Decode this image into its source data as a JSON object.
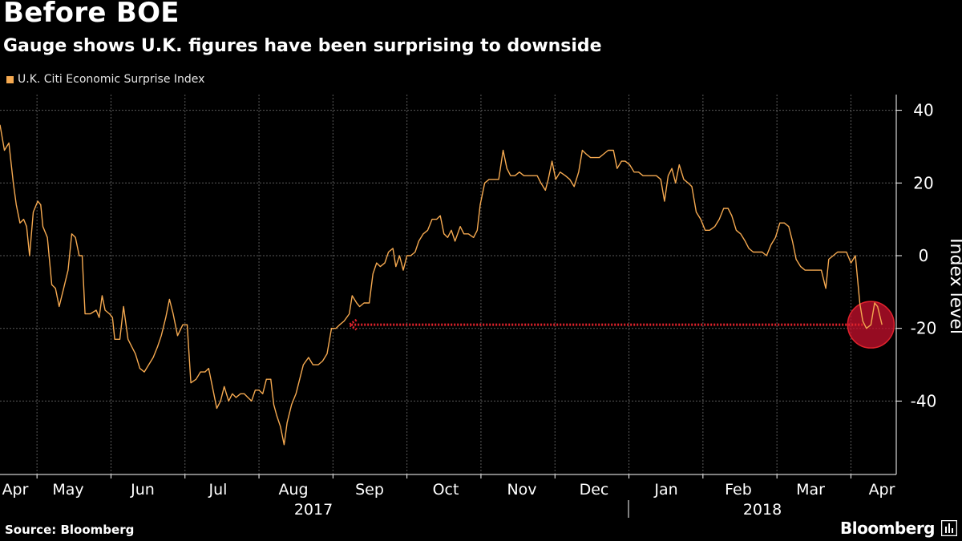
{
  "title": "Before BOE",
  "subtitle": "Gauge shows U.K. figures have been surprising to downside",
  "source": "Source: Bloomberg",
  "brand": "Bloomberg",
  "chart_data": {
    "type": "line",
    "legend": [
      "U.K. Citi Economic Surprise Index"
    ],
    "legend_position": "top-left",
    "color": "#f5a950",
    "ylabel": "Index level",
    "ylim": [
      -60,
      45
    ],
    "yticks": [
      40,
      20,
      0,
      -20,
      -40
    ],
    "y_axis_side": "right",
    "grid": true,
    "months": [
      "Apr",
      "May",
      "Jun",
      "Jul",
      "Aug",
      "Sep",
      "Oct",
      "Nov",
      "Dec",
      "Jan",
      "Feb",
      "Mar",
      "Apr"
    ],
    "years": [
      "2017",
      "2018"
    ],
    "x_unit": "months since Apr 1, 2017",
    "series": [
      {
        "name": "U.K. Citi Economic Surprise Index",
        "points": [
          [
            0.0,
            36
          ],
          [
            0.06,
            29
          ],
          [
            0.12,
            31
          ],
          [
            0.18,
            20
          ],
          [
            0.22,
            14
          ],
          [
            0.27,
            9
          ],
          [
            0.32,
            10
          ],
          [
            0.36,
            8
          ],
          [
            0.4,
            0
          ],
          [
            0.45,
            12
          ],
          [
            0.51,
            15
          ],
          [
            0.55,
            14
          ],
          [
            0.58,
            8
          ],
          [
            0.64,
            5
          ],
          [
            0.7,
            -8
          ],
          [
            0.75,
            -9
          ],
          [
            0.8,
            -14
          ],
          [
            0.86,
            -9
          ],
          [
            0.92,
            -4
          ],
          [
            0.97,
            6
          ],
          [
            1.02,
            5
          ],
          [
            1.07,
            0
          ],
          [
            1.11,
            0
          ],
          [
            1.15,
            -16
          ],
          [
            1.22,
            -16
          ],
          [
            1.3,
            -15
          ],
          [
            1.34,
            -17
          ],
          [
            1.38,
            -11
          ],
          [
            1.42,
            -15
          ],
          [
            1.48,
            -16
          ],
          [
            1.52,
            -17
          ],
          [
            1.55,
            -23
          ],
          [
            1.62,
            -23
          ],
          [
            1.67,
            -14
          ],
          [
            1.73,
            -23
          ],
          [
            1.78,
            -25
          ],
          [
            1.83,
            -27
          ],
          [
            1.89,
            -31
          ],
          [
            1.95,
            -32
          ],
          [
            2.01,
            -30
          ],
          [
            2.07,
            -28
          ],
          [
            2.13,
            -25
          ],
          [
            2.18,
            -22
          ],
          [
            2.24,
            -17
          ],
          [
            2.29,
            -12
          ],
          [
            2.34,
            -16
          ],
          [
            2.4,
            -22
          ],
          [
            2.47,
            -19
          ],
          [
            2.53,
            -19
          ],
          [
            2.58,
            -35
          ],
          [
            2.65,
            -34
          ],
          [
            2.71,
            -32
          ],
          [
            2.77,
            -32
          ],
          [
            2.82,
            -31
          ],
          [
            2.88,
            -37
          ],
          [
            2.93,
            -42
          ],
          [
            2.98,
            -40
          ],
          [
            3.03,
            -36
          ],
          [
            3.09,
            -40
          ],
          [
            3.14,
            -38
          ],
          [
            3.19,
            -39
          ],
          [
            3.25,
            -38
          ],
          [
            3.3,
            -38
          ],
          [
            3.35,
            -39
          ],
          [
            3.4,
            -40
          ],
          [
            3.45,
            -37
          ],
          [
            3.5,
            -37
          ],
          [
            3.55,
            -38
          ],
          [
            3.6,
            -34
          ],
          [
            3.66,
            -34
          ],
          [
            3.7,
            -41
          ],
          [
            3.74,
            -44
          ],
          [
            3.79,
            -47
          ],
          [
            3.84,
            -52
          ],
          [
            3.88,
            -46
          ],
          [
            3.94,
            -41
          ],
          [
            4.0,
            -38
          ],
          [
            4.05,
            -34
          ],
          [
            4.1,
            -30
          ],
          [
            4.17,
            -28
          ],
          [
            4.23,
            -30
          ],
          [
            4.3,
            -30
          ],
          [
            4.36,
            -29
          ],
          [
            4.42,
            -27
          ],
          [
            4.48,
            -20
          ],
          [
            4.54,
            -20
          ],
          [
            4.59,
            -19
          ],
          [
            4.65,
            -18
          ],
          [
            4.72,
            -16
          ],
          [
            4.76,
            -11
          ],
          [
            4.82,
            -13
          ],
          [
            4.86,
            -14
          ],
          [
            4.92,
            -13
          ],
          [
            4.99,
            -13
          ],
          [
            5.04,
            -5
          ],
          [
            5.09,
            -2
          ],
          [
            5.14,
            -3
          ],
          [
            5.2,
            -2
          ],
          [
            5.25,
            1
          ],
          [
            5.31,
            2
          ],
          [
            5.35,
            -3
          ],
          [
            5.4,
            0
          ],
          [
            5.45,
            -4
          ],
          [
            5.5,
            0
          ],
          [
            5.55,
            0
          ],
          [
            5.61,
            1
          ],
          [
            5.66,
            4
          ],
          [
            5.72,
            6
          ],
          [
            5.78,
            7
          ],
          [
            5.84,
            10
          ],
          [
            5.9,
            10
          ],
          [
            5.95,
            11
          ],
          [
            6.0,
            6
          ],
          [
            6.05,
            5
          ],
          [
            6.1,
            7
          ],
          [
            6.15,
            4
          ],
          [
            6.22,
            8
          ],
          [
            6.27,
            6
          ],
          [
            6.33,
            6
          ],
          [
            6.4,
            5
          ],
          [
            6.45,
            7
          ],
          [
            6.49,
            14
          ],
          [
            6.55,
            20
          ],
          [
            6.61,
            21
          ],
          [
            6.68,
            21
          ],
          [
            6.74,
            21
          ],
          [
            6.8,
            29
          ],
          [
            6.85,
            24
          ],
          [
            6.9,
            22
          ],
          [
            6.96,
            22
          ],
          [
            7.02,
            23
          ],
          [
            7.08,
            22
          ],
          [
            7.14,
            22
          ],
          [
            7.2,
            22
          ],
          [
            7.26,
            22
          ],
          [
            7.31,
            20
          ],
          [
            7.37,
            18
          ],
          [
            7.41,
            21
          ],
          [
            7.46,
            26
          ],
          [
            7.51,
            21
          ],
          [
            7.57,
            23
          ],
          [
            7.64,
            22
          ],
          [
            7.7,
            21
          ],
          [
            7.76,
            19
          ],
          [
            7.82,
            23
          ],
          [
            7.87,
            29
          ],
          [
            7.92,
            28
          ],
          [
            7.98,
            27
          ],
          [
            8.04,
            27
          ],
          [
            8.1,
            27
          ],
          [
            8.16,
            28
          ],
          [
            8.22,
            29
          ],
          [
            8.29,
            29
          ],
          [
            8.34,
            24
          ],
          [
            8.4,
            26
          ],
          [
            8.45,
            26
          ],
          [
            8.51,
            25
          ],
          [
            8.57,
            23
          ],
          [
            8.63,
            23
          ],
          [
            8.69,
            22
          ],
          [
            8.75,
            22
          ],
          [
            8.82,
            22
          ],
          [
            8.87,
            22
          ],
          [
            8.93,
            21
          ],
          [
            8.98,
            15
          ],
          [
            9.03,
            22
          ],
          [
            9.08,
            24
          ],
          [
            9.13,
            20
          ],
          [
            9.18,
            25
          ],
          [
            9.24,
            21
          ],
          [
            9.3,
            20
          ],
          [
            9.35,
            19
          ],
          [
            9.41,
            12
          ],
          [
            9.47,
            10
          ],
          [
            9.53,
            7
          ],
          [
            9.59,
            7
          ],
          [
            9.66,
            8
          ],
          [
            9.72,
            10
          ],
          [
            9.78,
            13
          ],
          [
            9.84,
            13
          ],
          [
            9.89,
            11
          ],
          [
            9.95,
            7
          ],
          [
            10.01,
            6
          ],
          [
            10.07,
            4
          ],
          [
            10.12,
            2
          ],
          [
            10.18,
            1
          ],
          [
            10.24,
            1
          ],
          [
            10.3,
            1
          ],
          [
            10.36,
            0
          ],
          [
            10.42,
            3
          ],
          [
            10.48,
            5
          ],
          [
            10.54,
            9
          ],
          [
            10.6,
            9
          ],
          [
            10.66,
            8
          ],
          [
            10.71,
            4
          ],
          [
            10.76,
            -1
          ],
          [
            10.82,
            -3
          ],
          [
            10.88,
            -4
          ],
          [
            10.94,
            -4
          ],
          [
            10.99,
            -4
          ],
          [
            11.05,
            -4
          ],
          [
            11.1,
            -4
          ],
          [
            11.16,
            -9
          ],
          [
            11.2,
            -1
          ],
          [
            11.26,
            0
          ],
          [
            11.32,
            1
          ],
          [
            11.38,
            1
          ],
          [
            11.44,
            1
          ],
          [
            11.5,
            -2
          ],
          [
            11.56,
            0
          ],
          [
            11.62,
            -13
          ],
          [
            11.66,
            -18
          ],
          [
            11.71,
            -20
          ],
          [
            11.77,
            -19
          ],
          [
            11.82,
            -13
          ],
          [
            11.86,
            -14
          ],
          [
            11.92,
            -19
          ]
        ]
      }
    ],
    "annotations": [
      {
        "type": "circle",
        "x": 11.77,
        "y": -19,
        "color": "#c8102e"
      },
      {
        "type": "arrow",
        "from_x": 11.66,
        "to_x": 4.72,
        "y": -19,
        "style": "dotted",
        "color": "#e0232d"
      }
    ]
  }
}
